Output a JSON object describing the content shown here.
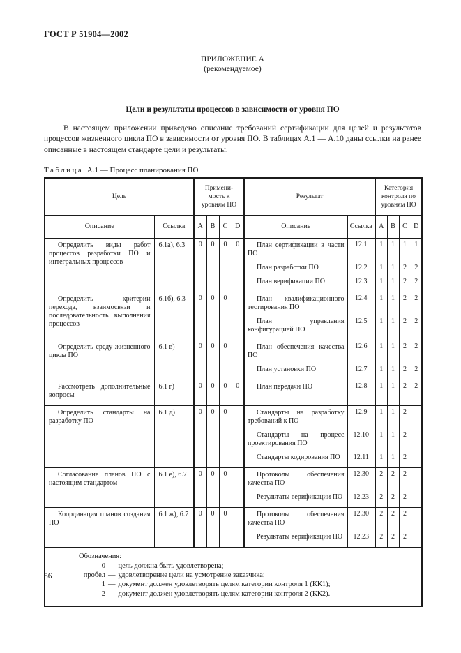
{
  "page": {
    "doc_number": "ГОСТ Р 51904—2002",
    "appendix_title": "ПРИЛОЖЕНИЕ А",
    "appendix_subtitle": "(рекомендуемое)",
    "section_title": "Цели и результаты процессов в зависимости от уровня ПО",
    "intro_text": "В настоящем приложении приведено описание требований сертификации для целей и результатов процессов жизненного цикла ПО в зависимости от уровня ПО. В таблицах А.1 — А.10 даны ссылки на ранее описанные в настоящем стандарте цели и результаты.",
    "page_number": "56"
  },
  "caption": {
    "word": "Таблица",
    "number": "А.1",
    "dash": "—",
    "title": "Процесс планирования ПО"
  },
  "table": {
    "headers": {
      "goal": "Цель",
      "applicability": "Примени- мость к уровням ПО",
      "result": "Результат",
      "control_category": "Категория контроля по уровням ПО",
      "description": "Описание",
      "reference": "Ссылка",
      "levels": [
        "A",
        "B",
        "C",
        "D"
      ]
    },
    "groups": [
      {
        "goal": "Определить виды работ процессов разработки ПО и интегральных процессов",
        "ref": "6.1а), 6.3",
        "applicability": [
          "0",
          "0",
          "0",
          "0"
        ],
        "results": [
          {
            "text": "План сертификации в части ПО",
            "ref": "12.1",
            "cc": [
              "1",
              "1",
              "1",
              "1"
            ]
          },
          {
            "text": "План разработки ПО",
            "ref": "12.2",
            "cc": [
              "1",
              "1",
              "2",
              "2"
            ]
          },
          {
            "text": "План верификации ПО",
            "ref": "12.3",
            "cc": [
              "1",
              "1",
              "2",
              "2"
            ]
          }
        ]
      },
      {
        "goal": "Определить критерии перехода, взаимосвязи и последовательность выполнения процессов",
        "ref": "6.1б), 6.3",
        "applicability": [
          "0",
          "0",
          "0",
          ""
        ],
        "results": [
          {
            "text": "План квалификационного тестирования ПО",
            "ref": "12.4",
            "cc": [
              "1",
              "1",
              "2",
              "2"
            ]
          },
          {
            "text": "План управления конфигурацией ПО",
            "ref": "12.5",
            "cc": [
              "1",
              "1",
              "2",
              "2"
            ]
          }
        ]
      },
      {
        "goal": "Определить среду жизненного цикла ПО",
        "ref": "6.1 в)",
        "applicability": [
          "0",
          "0",
          "0",
          ""
        ],
        "results": [
          {
            "text": "План обеспечения качества ПО",
            "ref": "12.6",
            "cc": [
              "1",
              "1",
              "2",
              "2"
            ]
          },
          {
            "text": "План установки ПО",
            "ref": "12.7",
            "cc": [
              "1",
              "1",
              "2",
              "2"
            ]
          }
        ]
      },
      {
        "goal": "Рассмотреть дополнительные вопросы",
        "ref": "6.1 г)",
        "applicability": [
          "0",
          "0",
          "0",
          "0"
        ],
        "results": [
          {
            "text": "План передачи ПО",
            "ref": "12.8",
            "cc": [
              "1",
              "1",
              "2",
              "2"
            ]
          }
        ]
      },
      {
        "goal": "Определить стандарты на разработку ПО",
        "ref": "6.1 д)",
        "applicability": [
          "0",
          "0",
          "0",
          ""
        ],
        "results": [
          {
            "text": "Стандарты на разработку требований к ПО",
            "ref": "12.9",
            "cc": [
              "1",
              "1",
              "2",
              ""
            ]
          },
          {
            "text": "Стандарты на процесс проектирования ПО",
            "ref": "12.10",
            "cc": [
              "1",
              "1",
              "2",
              ""
            ]
          },
          {
            "text": "Стандарты кодирования ПО",
            "ref": "12.11",
            "cc": [
              "1",
              "1",
              "2",
              ""
            ]
          }
        ]
      },
      {
        "goal": "Согласование планов ПО с настоящим стандартом",
        "ref": "6.1 е), 6.7",
        "applicability": [
          "0",
          "0",
          "0",
          ""
        ],
        "results": [
          {
            "text": "Протоколы обеспечения качества ПО",
            "ref": "12.30",
            "cc": [
              "2",
              "2",
              "2",
              ""
            ]
          },
          {
            "text": "Результаты верификации ПО",
            "ref": "12.23",
            "cc": [
              "2",
              "2",
              "2",
              ""
            ]
          }
        ]
      },
      {
        "goal": "Координация планов создания ПО",
        "ref": "6.1 ж), 6.7",
        "applicability": [
          "0",
          "0",
          "0",
          ""
        ],
        "results": [
          {
            "text": "Протоколы обеспечения качества ПО",
            "ref": "12.30",
            "cc": [
              "2",
              "2",
              "2",
              ""
            ]
          },
          {
            "text": "Результаты верификации ПО",
            "ref": "12.23",
            "cc": [
              "2",
              "2",
              "2",
              ""
            ]
          }
        ]
      }
    ],
    "notes": {
      "title": "Обозначения:",
      "dash": "—",
      "items": [
        {
          "term": "0",
          "text": "цель должна быть удовлетворена;"
        },
        {
          "term": "пробел",
          "text": "удовлетворение цели на усмотрение заказчика;"
        },
        {
          "term": "1",
          "text": "документ должен удовлетворять целям категории контроля 1 (КК1);"
        },
        {
          "term": "2",
          "text": "документ должен удовлетворять целям категории контроля 2 (КК2)."
        }
      ]
    }
  }
}
